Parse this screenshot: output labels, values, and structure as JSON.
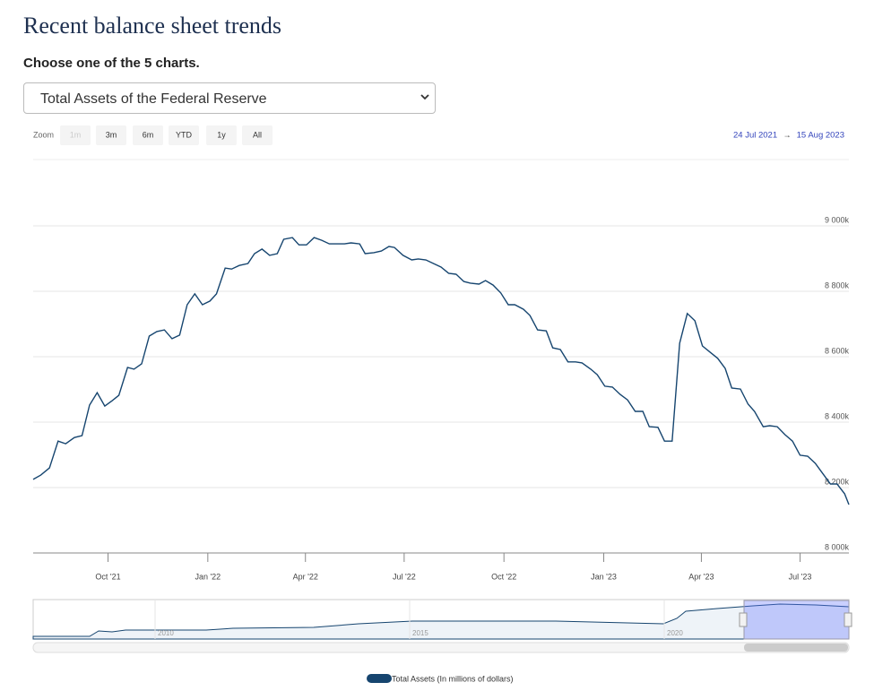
{
  "header": {
    "title": "Recent balance sheet trends",
    "prompt": "Choose one of the 5 charts."
  },
  "select": {
    "value": "Total Assets of the Federal Reserve"
  },
  "zoom": {
    "label": "Zoom",
    "buttons": [
      "1m",
      "3m",
      "6m",
      "YTD",
      "1y",
      "All"
    ]
  },
  "range": {
    "from": "24 Jul 2021",
    "arrow": "→",
    "to": "15 Aug 2023"
  },
  "navigator": {
    "labels": [
      "2010",
      "2015",
      "2020"
    ]
  },
  "chart_data": {
    "type": "line",
    "x": [
      "2021-07-24",
      "2021-07-31",
      "2021-08-08",
      "2021-08-16",
      "2021-08-23",
      "2021-08-31",
      "2021-09-07",
      "2021-09-14",
      "2021-09-21",
      "2021-09-28",
      "2021-10-05",
      "2021-10-11",
      "2021-10-19",
      "2021-10-25",
      "2021-11-01",
      "2021-11-08",
      "2021-11-15",
      "2021-11-22",
      "2021-11-29",
      "2021-12-06",
      "2021-12-13",
      "2021-12-20",
      "2021-12-27",
      "2022-01-03",
      "2022-01-09",
      "2022-01-17",
      "2022-01-23",
      "2022-01-30",
      "2022-02-07",
      "2022-02-13",
      "2022-02-20",
      "2022-02-27",
      "2022-03-06",
      "2022-03-12",
      "2022-03-20",
      "2022-03-26",
      "2022-04-02",
      "2022-04-09",
      "2022-04-16",
      "2022-04-23",
      "2022-04-30",
      "2022-05-07",
      "2022-05-13",
      "2022-05-21",
      "2022-05-26",
      "2022-06-03",
      "2022-06-10",
      "2022-06-17",
      "2022-06-22",
      "2022-06-30",
      "2022-07-08",
      "2022-07-14",
      "2022-07-21",
      "2022-07-28",
      "2022-08-04",
      "2022-08-11",
      "2022-08-18",
      "2022-08-25",
      "2022-08-31",
      "2022-09-08",
      "2022-09-14",
      "2022-09-21",
      "2022-09-28",
      "2022-10-05",
      "2022-10-11",
      "2022-10-19",
      "2022-10-25",
      "2022-11-01",
      "2022-11-09",
      "2022-11-15",
      "2022-11-22",
      "2022-11-29",
      "2022-12-06",
      "2022-12-12",
      "2022-12-20",
      "2022-12-26",
      "2023-01-02",
      "2023-01-09",
      "2023-01-16",
      "2023-01-23",
      "2023-01-30",
      "2023-02-06",
      "2023-02-12",
      "2023-02-20",
      "2023-02-26",
      "2023-03-05",
      "2023-03-12",
      "2023-03-19",
      "2023-03-26",
      "2023-04-02",
      "2023-04-09",
      "2023-04-16",
      "2023-04-23",
      "2023-04-29",
      "2023-05-07",
      "2023-05-14",
      "2023-05-20",
      "2023-05-28",
      "2023-06-03",
      "2023-06-10",
      "2023-06-17",
      "2023-06-24",
      "2023-07-01",
      "2023-07-08",
      "2023-07-15",
      "2023-07-21",
      "2023-07-29",
      "2023-08-04",
      "2023-08-11",
      "2023-08-15"
    ],
    "series": [
      {
        "name": "Total Assets (In millions of dollars)",
        "color": "#16456f",
        "values": [
          8225000,
          8238000,
          8260000,
          8342000,
          8334000,
          8353000,
          8359000,
          8452000,
          8490000,
          8449000,
          8466000,
          8482000,
          8567000,
          8562000,
          8578000,
          8663000,
          8677000,
          8682000,
          8655000,
          8666000,
          8759000,
          8792000,
          8759000,
          8770000,
          8792000,
          8871000,
          8868000,
          8879000,
          8885000,
          8915000,
          8929000,
          8910000,
          8915000,
          8959000,
          8964000,
          8942000,
          8942000,
          8964000,
          8956000,
          8945000,
          8945000,
          8945000,
          8948000,
          8945000,
          8915000,
          8918000,
          8923000,
          8937000,
          8934000,
          8910000,
          8896000,
          8899000,
          8896000,
          8885000,
          8874000,
          8855000,
          8852000,
          8830000,
          8825000,
          8822000,
          8833000,
          8819000,
          8795000,
          8759000,
          8759000,
          8745000,
          8726000,
          8682000,
          8679000,
          8627000,
          8622000,
          8584000,
          8584000,
          8581000,
          8562000,
          8545000,
          8510000,
          8507000,
          8485000,
          8468000,
          8433000,
          8433000,
          8386000,
          8384000,
          8342000,
          8342000,
          8641000,
          8732000,
          8710000,
          8633000,
          8614000,
          8595000,
          8564000,
          8504000,
          8501000,
          8455000,
          8433000,
          8386000,
          8389000,
          8386000,
          8362000,
          8342000,
          8299000,
          8296000,
          8274000,
          8247000,
          8211000,
          8211000,
          8181000,
          8148000
        ]
      }
    ],
    "xlim": [
      "2021-07-24",
      "2023-08-15"
    ],
    "xticks": [
      {
        "value": "2021-10-01",
        "label": "Oct '21"
      },
      {
        "value": "2022-01-01",
        "label": "Jan '22"
      },
      {
        "value": "2022-04-01",
        "label": "Apr '22"
      },
      {
        "value": "2022-07-01",
        "label": "Jul '22"
      },
      {
        "value": "2022-10-01",
        "label": "Oct '22"
      },
      {
        "value": "2023-01-01",
        "label": "Jan '23"
      },
      {
        "value": "2023-04-01",
        "label": "Apr '23"
      },
      {
        "value": "2023-07-01",
        "label": "Jul '23"
      }
    ],
    "ylim": [
      8000000,
      9200000
    ],
    "yticks": [
      {
        "value": 8000000,
        "label": "8 000k"
      },
      {
        "value": 8200000,
        "label": "8 200k"
      },
      {
        "value": 8400000,
        "label": "8 400k"
      },
      {
        "value": 8600000,
        "label": "8 600k"
      },
      {
        "value": 8800000,
        "label": "8 800k"
      },
      {
        "value": 9000000,
        "label": "9 000k"
      }
    ],
    "grid": true
  }
}
